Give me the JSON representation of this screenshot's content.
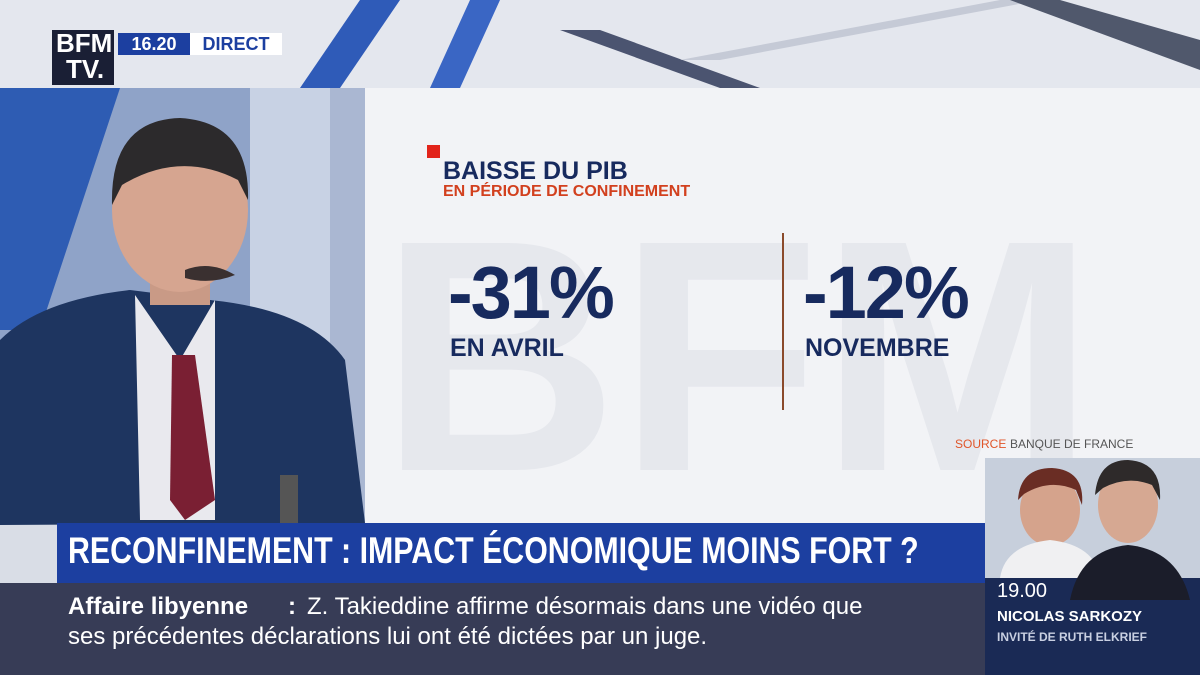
{
  "logo": {
    "line1": "BFM",
    "line2": "TV."
  },
  "clock": {
    "time": "16.20",
    "status": "DIRECT"
  },
  "infographic": {
    "title": "BAISSE DU PIB",
    "subtitle": "EN PÉRIODE DE CONFINEMENT",
    "stats": [
      {
        "value": "-31%",
        "label": "EN AVRIL"
      },
      {
        "value": "-12%",
        "label": "NOVEMBRE"
      }
    ],
    "source": {
      "prefix": "SOURCE",
      "name": "BANQUE DE FRANCE"
    }
  },
  "headline": "RECONFINEMENT : IMPACT ÉCONOMIQUE MOINS FORT ?",
  "ticker": {
    "topic": "Affaire libyenne",
    "separator": ":",
    "lines": [
      "Z. Takieddine affirme désormais dans une vidéo que",
      "ses précédentes déclarations lui ont été dictées par un juge."
    ]
  },
  "next_show": {
    "time": "19.00",
    "guest": "NICOLAS SARKOZY",
    "subtitle": "INVITÉ DE RUTH ELKRIEF"
  }
}
